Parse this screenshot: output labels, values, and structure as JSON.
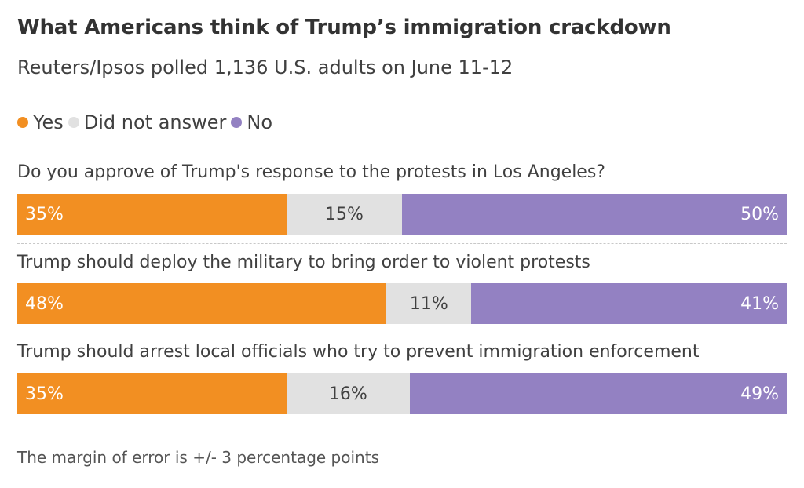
{
  "chart_data": {
    "type": "bar",
    "orientation": "horizontal-stacked-100",
    "title": "What Americans think of Trump’s immigration crackdown",
    "subtitle": "Reuters/Ipsos polled 1,136 U.S. adults on June 11-12",
    "legend": {
      "placement": "top-left",
      "items": [
        {
          "label": "Yes",
          "color": "#f28f22"
        },
        {
          "label": "Did not answer",
          "color": "#e1e1e1"
        },
        {
          "label": "No",
          "color": "#9381c2"
        }
      ]
    },
    "categories": [
      "Do you approve of Trump's response to the protests in Los Angeles?",
      "Trump should deploy the military to bring order to violent protests",
      "Trump should arrest local officials who try to prevent immigration enforcement"
    ],
    "series": [
      {
        "name": "Yes",
        "color": "#f28f22",
        "values": [
          35,
          48,
          35
        ]
      },
      {
        "name": "Did not answer",
        "color": "#e1e1e1",
        "values": [
          15,
          11,
          16
        ]
      },
      {
        "name": "No",
        "color": "#9381c2",
        "values": [
          50,
          41,
          49
        ]
      }
    ],
    "value_suffix": "%",
    "xlim": [
      0,
      100
    ],
    "grid": false,
    "note": "The margin of error is +/- 3 percentage points"
  }
}
